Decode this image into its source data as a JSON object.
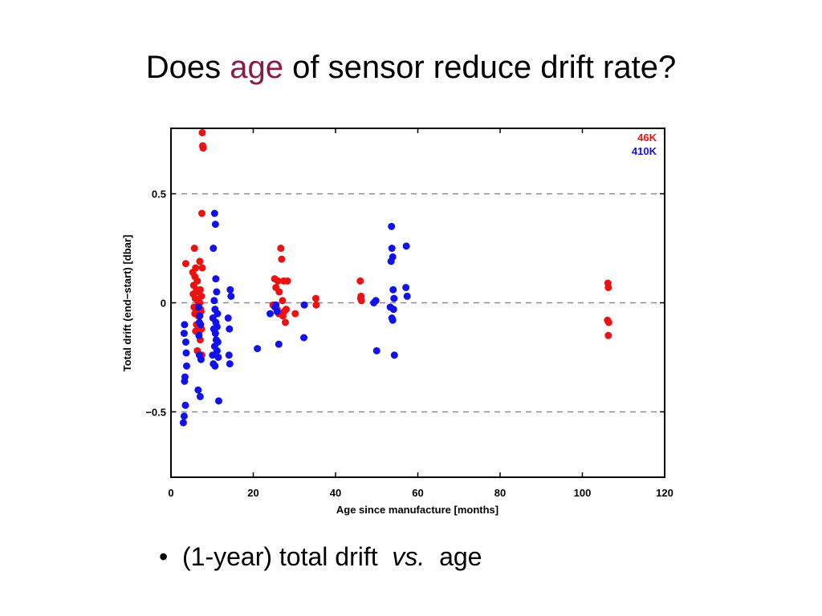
{
  "title": {
    "before": "Does ",
    "highlight": "age",
    "after": " of sensor reduce drift rate?",
    "highlight_color": "#8a1a4a"
  },
  "bullet": {
    "marker": "•",
    "text_before": "(1-year) total drift  ",
    "text_italic": "vs.",
    "text_after": "  age"
  },
  "chart_data": {
    "type": "scatter",
    "xlabel": "Age since manufacture [months]",
    "ylabel": "Total drift (end−start) [dbar]",
    "xlim": [
      0,
      120
    ],
    "ylim": [
      -0.8,
      0.8
    ],
    "x_ticks": [
      0,
      20,
      40,
      60,
      80,
      100,
      120
    ],
    "y_ticks": [
      -0.5,
      0,
      0.5
    ],
    "y_tick_labels": [
      "−0.5",
      "0",
      "0.5"
    ],
    "dashed_reference_lines": [
      -0.5,
      0,
      0.5
    ],
    "legend_placement": "top-right",
    "series": [
      {
        "name": "46K",
        "color": "#ee1111",
        "x": [
          7.6,
          7.7,
          7.8,
          3.6,
          5.7,
          6.0,
          7.0,
          7.5,
          5.3,
          5.8,
          6.4,
          7.1,
          7.6,
          5.5,
          6.2,
          6.8,
          7.4,
          5.4,
          5.9,
          6.5,
          7.0,
          5.6,
          6.1,
          6.7,
          7.3,
          5.8,
          6.6,
          7.2,
          6.0,
          6.9,
          7.4,
          6.2,
          7.1,
          6.4,
          7.5,
          26.7,
          26.9,
          25.2,
          26.0,
          27.4,
          28.3,
          25.5,
          26.3,
          27.1,
          24.8,
          25.8,
          27.5,
          28.0,
          26.2,
          27.2,
          30.2,
          27.8,
          35.2,
          35.3,
          46.0,
          46.2,
          46.1,
          46.3,
          106.2,
          106.3,
          106.1,
          106.4,
          106.3
        ],
        "y": [
          0.78,
          0.72,
          0.71,
          0.18,
          0.25,
          0.16,
          0.19,
          0.41,
          0.14,
          0.12,
          0.1,
          0.06,
          0.16,
          0.08,
          0.06,
          0.05,
          0.03,
          0.04,
          0.02,
          0.01,
          0.0,
          -0.02,
          -0.03,
          -0.01,
          -0.04,
          -0.05,
          -0.06,
          -0.03,
          -0.13,
          -0.13,
          -0.12,
          -0.1,
          -0.17,
          -0.22,
          -0.24,
          0.25,
          0.2,
          0.11,
          0.1,
          0.1,
          0.1,
          0.07,
          0.05,
          0.01,
          -0.01,
          -0.03,
          -0.04,
          -0.03,
          -0.05,
          -0.06,
          -0.05,
          -0.09,
          0.02,
          -0.01,
          0.1,
          0.03,
          0.02,
          0.01,
          0.09,
          0.07,
          -0.08,
          -0.09,
          -0.15
        ]
      },
      {
        "name": "410K",
        "color": "#1111ee",
        "x": [
          3.3,
          3.2,
          3.6,
          3.7,
          3.8,
          3.4,
          3.3,
          3.5,
          3.2,
          3.0,
          6.7,
          7.0,
          7.2,
          6.8,
          6.9,
          7.3,
          6.6,
          7.1,
          6.9,
          10.6,
          10.8,
          10.3,
          10.9,
          11.1,
          10.5,
          10.7,
          11.3,
          10.2,
          10.9,
          11.2,
          10.4,
          10.8,
          11.0,
          11.4,
          10.6,
          11.2,
          10.1,
          11.5,
          10.3,
          10.7,
          11.6,
          14.4,
          14.6,
          13.9,
          14.2,
          14.1,
          14.3,
          21.0,
          24.1,
          25.5,
          25.8,
          26.2,
          32.3,
          32.4,
          25.3,
          49.8,
          50.0,
          49.3,
          53.6,
          53.7,
          53.5,
          53.9,
          54.0,
          54.2,
          53.3,
          54.1,
          53.7,
          53.9,
          54.3,
          57.2,
          57.1,
          57.4
        ],
        "y": [
          -0.1,
          -0.14,
          -0.18,
          -0.23,
          -0.29,
          -0.34,
          -0.36,
          -0.47,
          -0.52,
          -0.55,
          -0.02,
          -0.06,
          -0.1,
          -0.15,
          -0.24,
          -0.26,
          -0.4,
          -0.43,
          -0.09,
          0.41,
          0.36,
          0.25,
          0.11,
          0.05,
          0.01,
          -0.03,
          -0.05,
          -0.07,
          -0.09,
          -0.11,
          -0.12,
          -0.14,
          -0.17,
          -0.18,
          -0.2,
          -0.22,
          -0.24,
          -0.25,
          -0.28,
          -0.29,
          -0.45,
          0.06,
          0.03,
          -0.07,
          -0.12,
          -0.24,
          -0.28,
          -0.21,
          -0.05,
          -0.01,
          -0.04,
          -0.19,
          -0.16,
          -0.01,
          -0.02,
          0.01,
          -0.22,
          0.0,
          0.35,
          0.25,
          0.19,
          0.21,
          0.06,
          0.02,
          -0.02,
          -0.03,
          -0.07,
          -0.08,
          -0.24,
          0.26,
          0.07,
          0.03
        ]
      }
    ]
  }
}
